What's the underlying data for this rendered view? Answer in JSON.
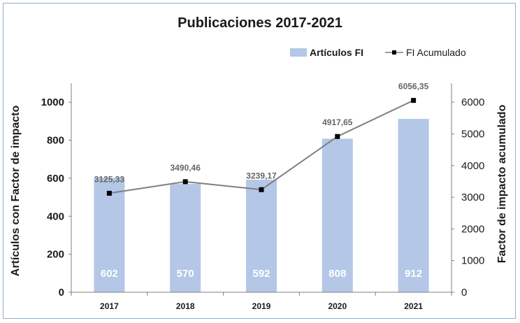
{
  "chart_data": {
    "type": "bar",
    "title": "Publicaciones 2017-2021",
    "categories": [
      "2017",
      "2018",
      "2019",
      "2020",
      "2021"
    ],
    "series": [
      {
        "name": "Artículos FI",
        "type": "bar",
        "axis": "left",
        "values": [
          602,
          570,
          592,
          808,
          912
        ],
        "labels": [
          "602",
          "570",
          "592",
          "808",
          "912"
        ],
        "color": "#b4c7e7"
      },
      {
        "name": "FI Acumulado",
        "type": "line",
        "axis": "right",
        "values": [
          3125.33,
          3490.46,
          3239.17,
          4917.65,
          6056.35
        ],
        "labels": [
          "3125,33",
          "3490,46",
          "3239,17",
          "4917,65",
          "6056,35"
        ],
        "color": "#7f7f7f",
        "marker_color": "#000000"
      }
    ],
    "ylabel": "Artículos con Factor de impacto",
    "y2label": "Factor de impacto acumulado",
    "ylim": [
      0,
      1100
    ],
    "y2lim": [
      0,
      6600
    ],
    "yticks": [
      0,
      200,
      400,
      600,
      800,
      1000
    ],
    "y2ticks": [
      0,
      1000,
      2000,
      3000,
      4000,
      5000,
      6000
    ],
    "legend_position": "top-right",
    "grid": false
  }
}
